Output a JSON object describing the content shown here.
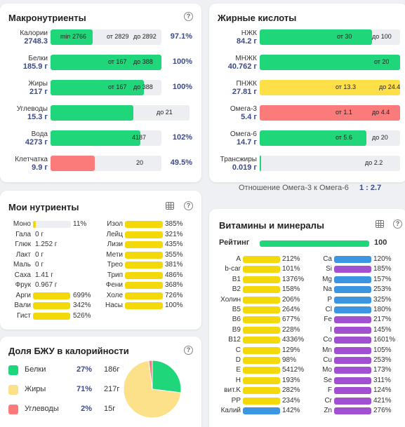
{
  "macro": {
    "title": "Макронутриенты",
    "rows": [
      {
        "name": "Калории",
        "value": "2748.3",
        "labels": [
          "min 2766",
          "от 2829",
          "до 2892"
        ],
        "percent": "97.1%"
      },
      {
        "name": "Белки",
        "value": "185.9 г",
        "labels": [
          "от 167",
          "до 388"
        ],
        "percent": "100%"
      },
      {
        "name": "Жиры",
        "value": "217 г",
        "labels": [
          "от 167",
          "до 388"
        ],
        "percent": "100%"
      },
      {
        "name": "Углеводы",
        "value": "15.3 г",
        "labels": [
          "до 21"
        ]
      },
      {
        "name": "Вода",
        "value": "4273 г",
        "labels": [
          "4187"
        ],
        "percent": "102%"
      },
      {
        "name": "Клетчатка",
        "value": "9.9 г",
        "labels": [
          "20"
        ],
        "percent": "49.5%"
      }
    ]
  },
  "fatty": {
    "title": "Жирные кислоты",
    "rows": [
      {
        "name": "НЖК",
        "value": "84.2 г",
        "labels": [
          "от 30",
          "до 100"
        ]
      },
      {
        "name": "МНЖК",
        "value": "40.762 г",
        "labels": [
          "от 20"
        ]
      },
      {
        "name": "ПНЖК",
        "value": "27.81 г",
        "labels": [
          "от 13.3",
          "до 24.4"
        ]
      },
      {
        "name": "Омега-3",
        "value": "5.4 г",
        "labels": [
          "от 1.1",
          "до 4.4"
        ]
      },
      {
        "name": "Омега-6",
        "value": "14.7 г",
        "labels": [
          "от 5.6",
          "до 20"
        ]
      },
      {
        "name": "Трансжиры",
        "value": "0.019 г",
        "labels": [
          "до 2.2"
        ]
      }
    ],
    "ratio_label": "Отношение Омега-3 к Омега-6",
    "ratio": "1 : 2.7"
  },
  "my": {
    "title": "Мои нутриенты",
    "left": [
      [
        "Моно",
        "11%"
      ],
      [
        "Гала",
        "0 г"
      ],
      [
        "Глюк",
        "1.252 г"
      ],
      [
        "Лакт",
        "0 г"
      ],
      [
        "Маль",
        "0 г"
      ],
      [
        "Саха",
        "1.41 г"
      ],
      [
        "Фрук",
        "0.967 г"
      ],
      [
        "Арги",
        "699%"
      ],
      [
        "Вали",
        "342%"
      ],
      [
        "Гист",
        "526%"
      ]
    ],
    "right": [
      [
        "Изол",
        "385%"
      ],
      [
        "Лейц",
        "321%"
      ],
      [
        "Лизи",
        "435%"
      ],
      [
        "Мети",
        "355%"
      ],
      [
        "Трео",
        "381%"
      ],
      [
        "Трип",
        "486%"
      ],
      [
        "Фени",
        "368%"
      ],
      [
        "Холе",
        "726%"
      ],
      [
        "Насы",
        "100%"
      ]
    ]
  },
  "bju": {
    "title": "Доля БЖУ в калорийности",
    "items": [
      {
        "name": "Белки",
        "share": 27,
        "share_label": "27%",
        "grams": "186г"
      },
      {
        "name": "Жиры",
        "share": 71,
        "share_label": "71%",
        "grams": "217г"
      },
      {
        "name": "Углеводы",
        "share": 2,
        "share_label": "2%",
        "grams": "15г"
      }
    ]
  },
  "vitamins": {
    "title": "Витамины и минералы",
    "rating_label": "Рейтинг",
    "rating": "100",
    "left": [
      [
        "A",
        "212%"
      ],
      [
        "b-car",
        "101%"
      ],
      [
        "B1",
        "1376%"
      ],
      [
        "B2",
        "158%"
      ],
      [
        "Холин",
        "206%"
      ],
      [
        "B5",
        "264%"
      ],
      [
        "B6",
        "677%"
      ],
      [
        "B9",
        "228%"
      ],
      [
        "B12",
        "4336%"
      ],
      [
        "C",
        "129%"
      ],
      [
        "D",
        "98%"
      ],
      [
        "E",
        "5412%"
      ],
      [
        "H",
        "193%"
      ],
      [
        "вит.K",
        "282%"
      ],
      [
        "PP",
        "234%"
      ],
      [
        "Калий",
        "142%"
      ]
    ],
    "right": [
      [
        "Ca",
        "120%"
      ],
      [
        "Si",
        "185%"
      ],
      [
        "Mg",
        "157%"
      ],
      [
        "Na",
        "253%"
      ],
      [
        "P",
        "325%"
      ],
      [
        "Cl",
        "180%"
      ],
      [
        "Fe",
        "217%"
      ],
      [
        "I",
        "145%"
      ],
      [
        "Co",
        "1601%"
      ],
      [
        "Mn",
        "105%"
      ],
      [
        "Cu",
        "253%"
      ],
      [
        "Mo",
        "173%"
      ],
      [
        "Se",
        "311%"
      ],
      [
        "F",
        "124%"
      ],
      [
        "Cr",
        "421%"
      ],
      [
        "Zn",
        "276%"
      ]
    ]
  }
}
